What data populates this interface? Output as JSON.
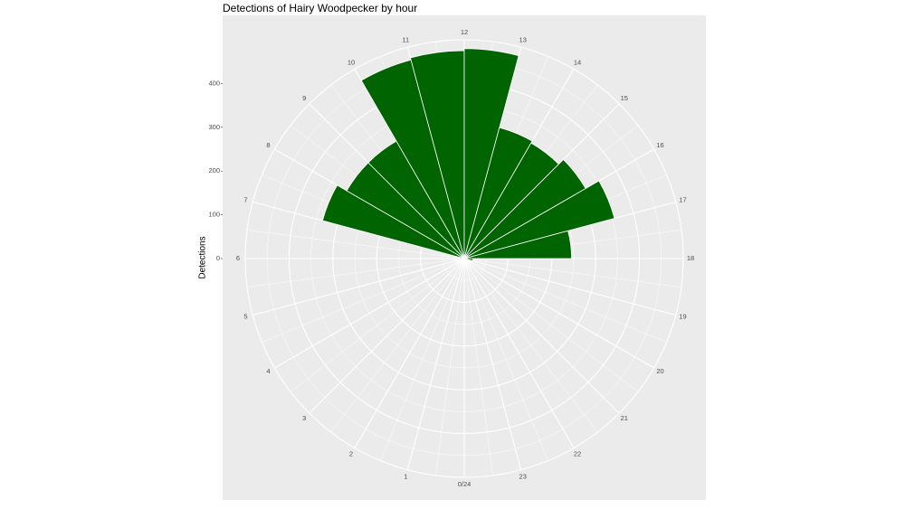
{
  "chart_data": {
    "type": "bar",
    "coord": "polar",
    "title": "Detections of Hairy Woodpecker by hour",
    "xlabel": "",
    "ylabel": "Detections",
    "ylim": [
      0,
      500
    ],
    "yticks": [
      0,
      100,
      200,
      300,
      400
    ],
    "angle_labels": [
      "0/24",
      "1",
      "2",
      "3",
      "4",
      "5",
      "6",
      "7",
      "8",
      "9",
      "10",
      "11",
      "12",
      "13",
      "14",
      "15",
      "16",
      "17",
      "18",
      "19",
      "20",
      "21",
      "22",
      "23"
    ],
    "categories": [
      "0",
      "1",
      "2",
      "3",
      "4",
      "5",
      "6",
      "7",
      "8",
      "9",
      "10",
      "11",
      "12",
      "13",
      "14",
      "15",
      "16",
      "17",
      "18",
      "19",
      "20",
      "21",
      "22",
      "23"
    ],
    "values": [
      0,
      0,
      0,
      0,
      0,
      0,
      10,
      335,
      310,
      310,
      470,
      475,
      480,
      310,
      305,
      320,
      355,
      245,
      20,
      0,
      0,
      0,
      0,
      0
    ],
    "bar_color": "#006400",
    "panel_background": "#ebebeb",
    "grid_color": "#ffffff",
    "grid": true
  }
}
